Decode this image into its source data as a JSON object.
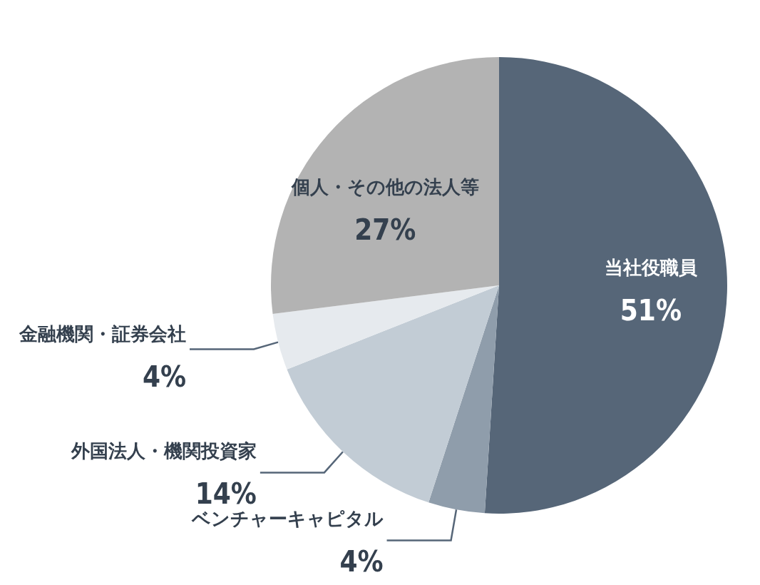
{
  "chart_data": {
    "type": "pie",
    "categories": [
      "当社役職員",
      "ベンチャーキャピタル",
      "外国法人・機関投資家",
      "金融機関・証券会社",
      "個人・その他の法人等"
    ],
    "values": [
      51,
      4,
      14,
      4,
      27
    ],
    "colors": [
      "#566678",
      "#8f9dab",
      "#c2ccd5",
      "#e6eaee",
      "#b3b3b3"
    ],
    "value_labels": [
      "51%",
      "4%",
      "14%",
      "4%",
      "27%"
    ]
  }
}
